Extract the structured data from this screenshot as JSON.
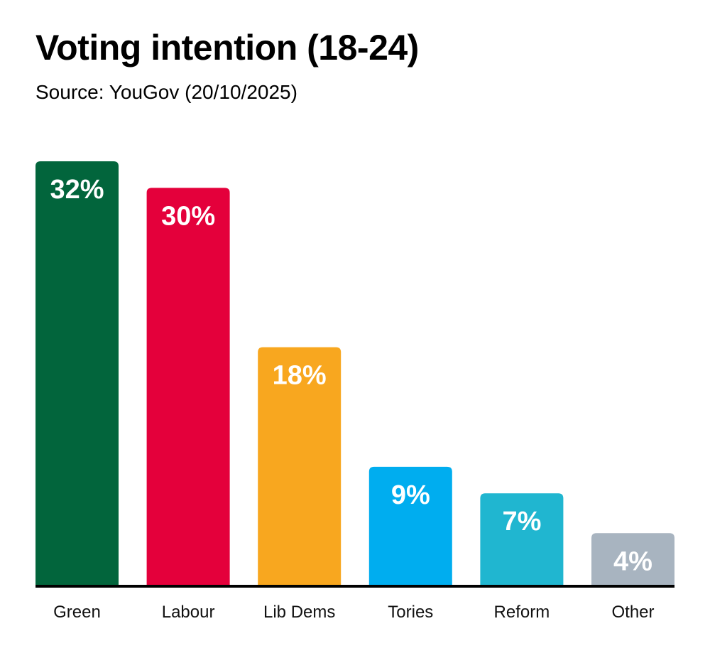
{
  "chart_data": {
    "type": "bar",
    "title": "Voting intention (18-24)",
    "subtitle": "Source: YouGov (20/10/2025)",
    "categories": [
      "Green",
      "Labour",
      "Lib Dems",
      "Tories",
      "Reform",
      "Other"
    ],
    "values": [
      32,
      30,
      18,
      9,
      7,
      4
    ],
    "value_labels": [
      "32%",
      "30%",
      "18%",
      "9%",
      "7%",
      "4%"
    ],
    "colors": [
      "#02653c",
      "#e4003b",
      "#f8a71f",
      "#00adef",
      "#20b6d0",
      "#a8b4c0"
    ],
    "ylim": [
      0,
      32
    ],
    "grid": false,
    "legend": "none"
  }
}
